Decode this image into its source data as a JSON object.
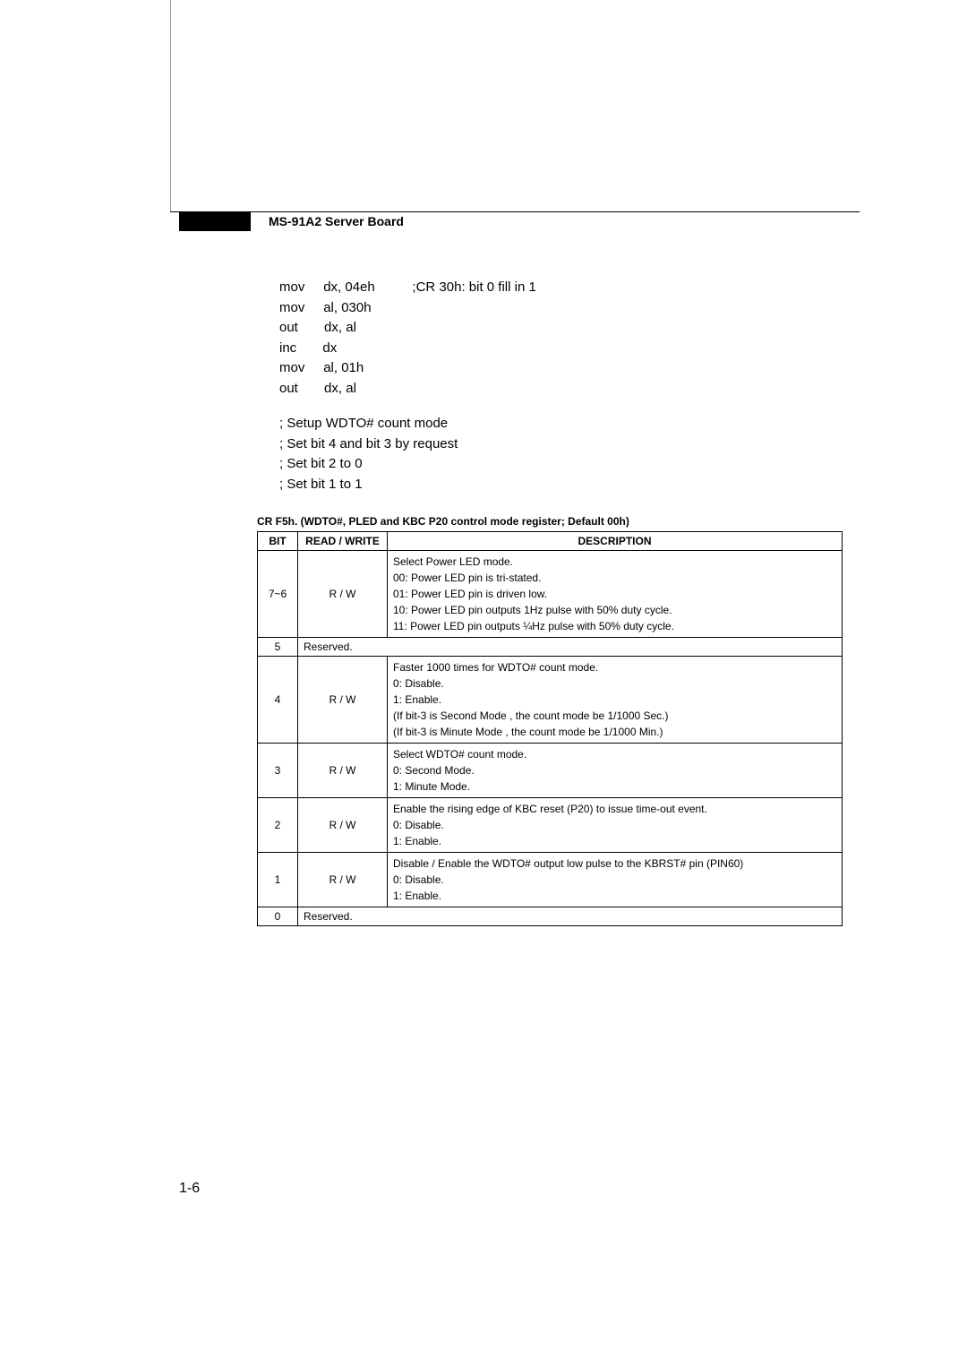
{
  "header": {
    "title": "MS-91A2 Server Board"
  },
  "code": {
    "lines": [
      {
        "op": "mov",
        "args": "dx, 04eh",
        "comment": ";CR 30h: bit 0 fill in 1"
      },
      {
        "op": "mov",
        "args": "al, 030h",
        "comment": ""
      },
      {
        "op": "out",
        "args": "dx, al",
        "comment": ""
      },
      {
        "op": "inc",
        "args": "dx",
        "comment": ""
      },
      {
        "op": "mov",
        "args": "al, 01h",
        "comment": ""
      },
      {
        "op": "out",
        "args": "dx, al",
        "comment": ""
      }
    ]
  },
  "comments": [
    "; Setup WDTO# count mode",
    "; Set bit 4 and bit 3 by request",
    "; Set bit 2 to 0",
    "; Set bit 1 to 1"
  ],
  "table": {
    "title": "CR F5h. (WDTO#, PLED and KBC P20 control mode register; Default 00h)",
    "headers": {
      "bit": "BIT",
      "rw": "READ / WRITE",
      "desc": "DESCRIPTION"
    },
    "rows": [
      {
        "bit": "7~6",
        "rw": "R / W",
        "desc": "Select Power LED mode.\n00: Power LED pin is tri-stated.\n01: Power LED pin is driven low.\n10: Power LED pin outputs 1Hz pulse with 50% duty cycle.\n11: Power LED pin outputs ¼Hz pulse with 50% duty cycle."
      },
      {
        "bit": "5",
        "rw": "Reserved.",
        "desc": "",
        "merged": true
      },
      {
        "bit": "4",
        "rw": "R / W",
        "desc": "Faster 1000 times for WDTO# count mode.\n0: Disable.\n1: Enable.\n(If bit-3 is Second Mode , the count mode be 1/1000 Sec.)\n(If bit-3 is Minute Mode , the count mode be 1/1000 Min.)"
      },
      {
        "bit": "3",
        "rw": "R / W",
        "desc": "Select WDTO# count mode.\n0: Second Mode.\n1: Minute Mode."
      },
      {
        "bit": "2",
        "rw": "R / W",
        "desc": "Enable the rising edge of KBC reset (P20) to issue time-out event.\n0: Disable.\n1: Enable."
      },
      {
        "bit": "1",
        "rw": "R / W",
        "desc": "Disable / Enable the WDTO# output low pulse to the KBRST# pin (PIN60)\n0: Disable.\n1: Enable."
      },
      {
        "bit": "0",
        "rw": "Reserved.",
        "desc": "",
        "merged": true
      }
    ]
  },
  "pageNum": "1-6"
}
